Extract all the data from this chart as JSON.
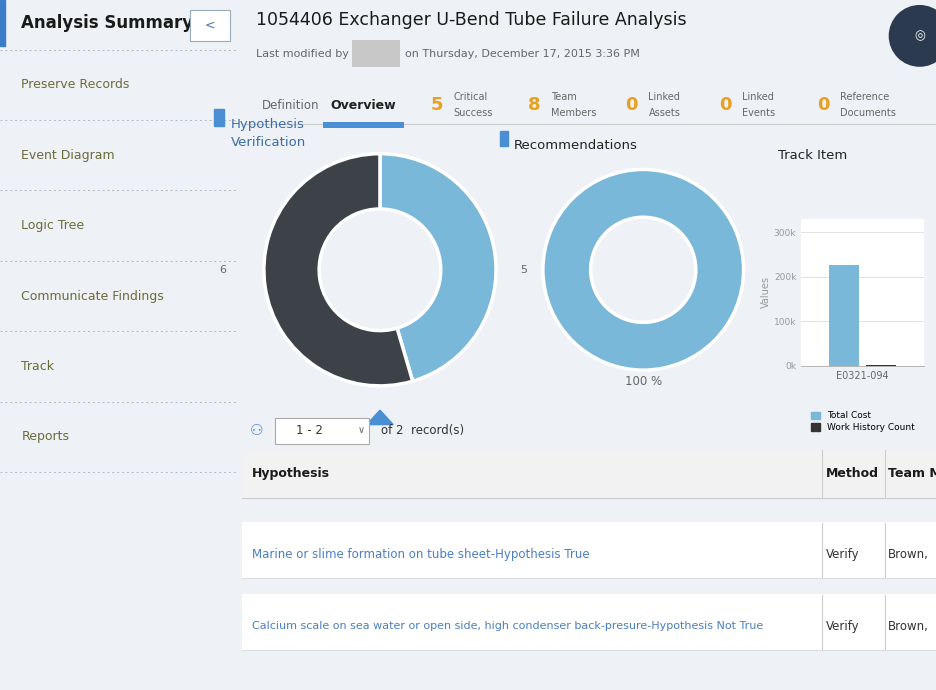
{
  "title": "1054406 Exchanger U-Bend Tube Failure Analysis",
  "sidebar_bg": "#e8ecf1",
  "main_bg": "#eef1f5",
  "sidebar_title": "Analysis Summary",
  "sidebar_items": [
    "Preserve Records",
    "Event Diagram",
    "Logic Tree",
    "Communicate Findings",
    "Track",
    "Reports"
  ],
  "nav_active": "Overview",
  "hyp_title": "Hypothesis\nVerification",
  "hyp_completed": 5,
  "hyp_pending": 6,
  "hyp_colors": [
    "#7ab8d9",
    "#3d4248"
  ],
  "rec_title": "Recommendations",
  "rec_label": "100 %",
  "rec_color": "#7ab8d9",
  "track_title": "Track Item",
  "track_category": "E0321-094",
  "track_total_cost": 225000,
  "track_history_count": 2000,
  "track_bar_color": "#7ab8d9",
  "track_bar_color2": "#333333",
  "table_header_bg": "#f2f2f2",
  "table_headers": [
    "Hypothesis",
    "Method",
    "Team Me"
  ],
  "table_row1": [
    "Marine or slime formation on tube sheet-Hypothesis True",
    "Verify",
    "Brown,"
  ],
  "table_row2": [
    "Calcium scale on sea water or open side, high condenser back-presure-Hypothesis Not True",
    "Verify",
    "Brown,"
  ],
  "link_color": "#4a7fc1",
  "records_label": "1 - 2",
  "records_total": "of 2  record(s)",
  "panel_bg": "#ffffff",
  "blue_underline": "#4a8fd4",
  "hyp_title_color": "#3a6ea8",
  "rec_title_color": "#222222",
  "track_title_color": "#222222",
  "dark_circle": "#2b3a4e",
  "nav_number_color": "#e8a020",
  "sidebar_item_color": "#6b6b3a",
  "tab_inactive_color": "#666666",
  "tab_active_color": "#222222",
  "grid_color": "#dddddd",
  "axis_label_color": "#999999",
  "tick_color": "#999999"
}
